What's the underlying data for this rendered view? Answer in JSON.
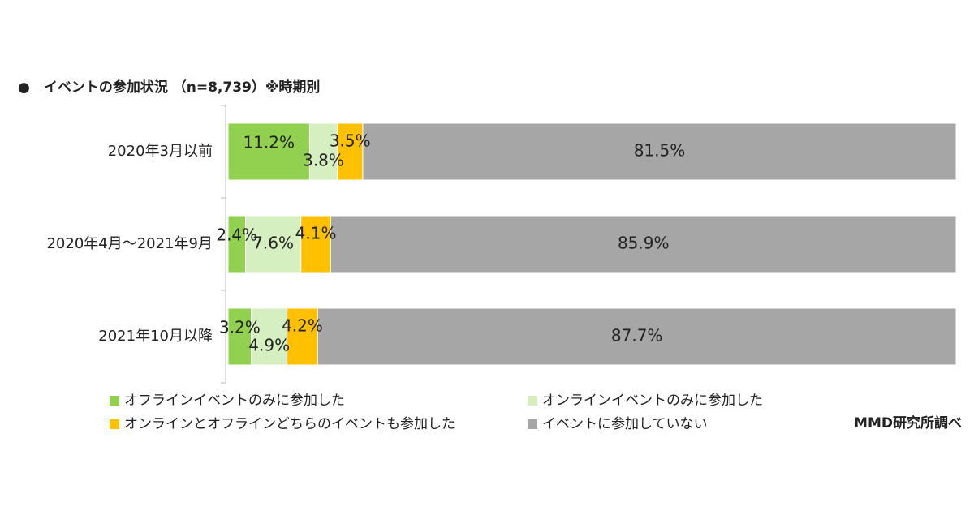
{
  "chart_data": {
    "type": "stacked_bar_horizontal",
    "title": "●　イベントの参加状況 （n=8,739）※時期別",
    "source": "MMD研究所調べ",
    "categories": [
      "2020年3月以前",
      "2020年4月～2021年9月",
      "2021年10月以降"
    ],
    "xlim": [
      0,
      100
    ],
    "series": [
      {
        "name": "オフラインイベントのみに参加した",
        "color": "#92d050",
        "values": [
          11.2,
          2.4,
          3.2
        ],
        "value_labels": [
          "11.2%",
          "2.4%",
          "3.2%"
        ]
      },
      {
        "name": "オンラインイベントのみに参加した",
        "color": "#d6efc0",
        "values": [
          3.8,
          7.6,
          4.9
        ],
        "value_labels": [
          "3.8%",
          "7.6%",
          "4.9%"
        ]
      },
      {
        "name": "オンラインとオフラインどちらのイベントも参加した",
        "color": "#ffc000",
        "values": [
          3.5,
          4.1,
          4.2
        ],
        "value_labels": [
          "3.5%",
          "4.1%",
          "4.2%"
        ]
      },
      {
        "name": "イベントに参加していない",
        "color": "#a6a6a6",
        "values": [
          81.5,
          85.9,
          87.7
        ],
        "value_labels": [
          "81.5%",
          "85.9%",
          "87.7%"
        ]
      }
    ]
  }
}
